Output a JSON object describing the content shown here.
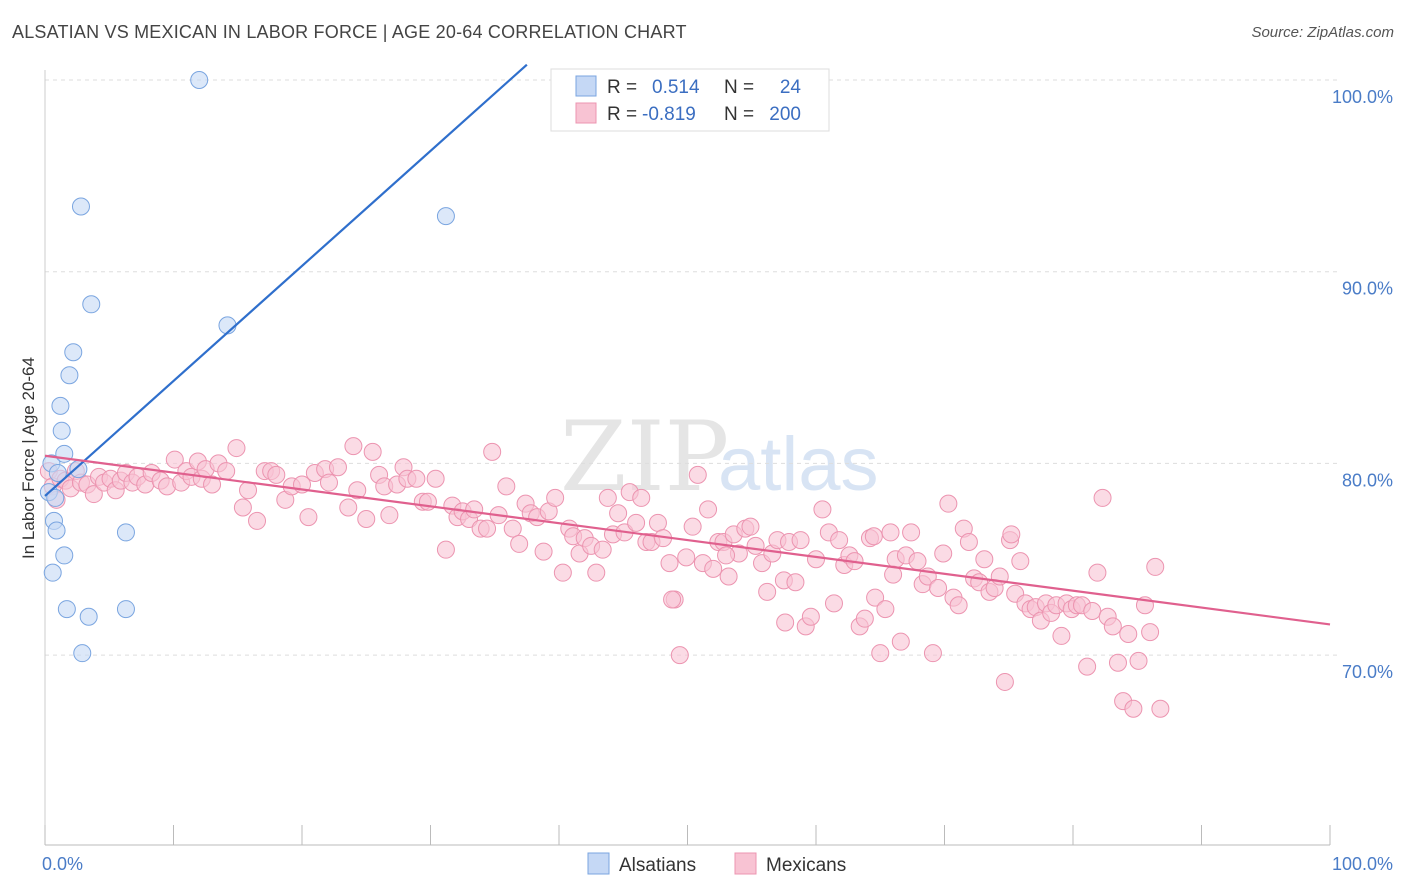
{
  "title": "ALSATIAN VS MEXICAN IN LABOR FORCE | AGE 20-64 CORRELATION CHART",
  "source": "Source: ZipAtlas.com",
  "watermark": {
    "zip": "ZIP",
    "atlas": "atlas"
  },
  "colors": {
    "blue_fill": "#c5d8f5",
    "blue_stroke": "#7aa5e0",
    "blue_line": "#2f6fcc",
    "pink_fill": "#f8c3d3",
    "pink_stroke": "#ec94b0",
    "pink_line": "#e0608e",
    "tick_text": "#4a7cc7",
    "grid": "#dddddd"
  },
  "legend": {
    "rows": [
      {
        "r_label": "R =",
        "r_value": "0.514",
        "n_label": "N =",
        "n_value": "24"
      },
      {
        "r_label": "R =",
        "r_value": "-0.819",
        "n_label": "N =",
        "n_value": "200"
      }
    ]
  },
  "bottom_legend": [
    "Alsatians",
    "Mexicans"
  ],
  "chart_data": {
    "type": "scatter",
    "title": "ALSATIAN VS MEXICAN IN LABOR FORCE | AGE 20-64 CORRELATION CHART",
    "xlabel": "",
    "ylabel": "In Labor Force | Age 20-64",
    "xlim": [
      0,
      100
    ],
    "ylim": [
      60,
      102
    ],
    "x_tick_labels": [
      "0.0%",
      "100.0%"
    ],
    "y_ticks": [
      70,
      80,
      90,
      100
    ],
    "y_tick_labels": [
      "70.0%",
      "80.0%",
      "90.0%",
      "100.0%"
    ],
    "grid": true,
    "legend_position": "top-center",
    "series": [
      {
        "name": "Alsatians",
        "points": [
          [
            0.3,
            78.5
          ],
          [
            0.5,
            80.0
          ],
          [
            0.6,
            74.3
          ],
          [
            0.7,
            77.0
          ],
          [
            0.8,
            78.2
          ],
          [
            0.9,
            76.5
          ],
          [
            1.2,
            83.0
          ],
          [
            1.3,
            81.7
          ],
          [
            1.5,
            75.2
          ],
          [
            1.7,
            72.4
          ],
          [
            1.9,
            84.6
          ],
          [
            2.2,
            85.8
          ],
          [
            1.5,
            80.5
          ],
          [
            2.6,
            79.7
          ],
          [
            2.9,
            70.1
          ],
          [
            2.8,
            93.4
          ],
          [
            3.4,
            72.0
          ],
          [
            3.6,
            88.3
          ],
          [
            6.3,
            76.4
          ],
          [
            6.3,
            72.4
          ],
          [
            12.0,
            100.0
          ],
          [
            14.2,
            87.2
          ],
          [
            31.2,
            92.9
          ],
          [
            1.0,
            79.5
          ]
        ],
        "trend": {
          "x": [
            0,
            37.5
          ],
          "y": [
            78.3,
            100.8
          ]
        }
      },
      {
        "name": "Mexicans",
        "points": [
          [
            0.3,
            79.6
          ],
          [
            0.6,
            78.8
          ],
          [
            0.9,
            78.1
          ],
          [
            1.2,
            79.2
          ],
          [
            1.6,
            79.1
          ],
          [
            2.0,
            78.7
          ],
          [
            2.4,
            79.6
          ],
          [
            2.8,
            79.0
          ],
          [
            3.3,
            78.9
          ],
          [
            3.8,
            78.4
          ],
          [
            4.2,
            79.3
          ],
          [
            4.6,
            79.0
          ],
          [
            5.1,
            79.2
          ],
          [
            5.5,
            78.6
          ],
          [
            5.9,
            79.1
          ],
          [
            6.3,
            79.5
          ],
          [
            6.8,
            79.0
          ],
          [
            7.2,
            79.3
          ],
          [
            7.8,
            78.9
          ],
          [
            8.3,
            79.5
          ],
          [
            9.0,
            79.1
          ],
          [
            9.5,
            78.8
          ],
          [
            10.1,
            80.2
          ],
          [
            10.6,
            79.0
          ],
          [
            11.0,
            79.6
          ],
          [
            11.4,
            79.3
          ],
          [
            11.9,
            80.1
          ],
          [
            12.2,
            79.2
          ],
          [
            12.5,
            79.7
          ],
          [
            13.0,
            78.9
          ],
          [
            13.5,
            80.0
          ],
          [
            14.1,
            79.6
          ],
          [
            14.9,
            80.8
          ],
          [
            15.4,
            77.7
          ],
          [
            15.8,
            78.6
          ],
          [
            16.5,
            77.0
          ],
          [
            17.1,
            79.6
          ],
          [
            17.6,
            79.6
          ],
          [
            18.0,
            79.4
          ],
          [
            18.7,
            78.1
          ],
          [
            19.2,
            78.8
          ],
          [
            20.0,
            78.9
          ],
          [
            20.5,
            77.2
          ],
          [
            21.0,
            79.5
          ],
          [
            21.8,
            79.7
          ],
          [
            22.1,
            79.0
          ],
          [
            22.8,
            79.8
          ],
          [
            23.6,
            77.7
          ],
          [
            24.0,
            80.9
          ],
          [
            24.3,
            78.6
          ],
          [
            25.0,
            77.1
          ],
          [
            25.5,
            80.6
          ],
          [
            26.0,
            79.4
          ],
          [
            26.4,
            78.8
          ],
          [
            26.8,
            77.3
          ],
          [
            27.4,
            78.9
          ],
          [
            27.9,
            79.8
          ],
          [
            28.2,
            79.2
          ],
          [
            28.9,
            79.2
          ],
          [
            29.4,
            78.0
          ],
          [
            29.8,
            78.0
          ],
          [
            30.4,
            79.2
          ],
          [
            31.2,
            75.5
          ],
          [
            31.7,
            77.8
          ],
          [
            32.1,
            77.2
          ],
          [
            32.5,
            77.5
          ],
          [
            33.0,
            77.1
          ],
          [
            33.4,
            77.6
          ],
          [
            33.9,
            76.6
          ],
          [
            34.4,
            76.6
          ],
          [
            34.8,
            80.6
          ],
          [
            35.3,
            77.3
          ],
          [
            35.9,
            78.8
          ],
          [
            36.4,
            76.6
          ],
          [
            36.9,
            75.8
          ],
          [
            37.4,
            77.9
          ],
          [
            37.8,
            77.4
          ],
          [
            38.3,
            77.2
          ],
          [
            38.8,
            75.4
          ],
          [
            39.2,
            77.5
          ],
          [
            39.7,
            78.2
          ],
          [
            40.3,
            74.3
          ],
          [
            40.8,
            76.6
          ],
          [
            41.1,
            76.2
          ],
          [
            41.6,
            75.3
          ],
          [
            42.0,
            76.1
          ],
          [
            42.5,
            75.7
          ],
          [
            42.9,
            74.3
          ],
          [
            43.4,
            75.5
          ],
          [
            43.8,
            78.2
          ],
          [
            44.2,
            76.3
          ],
          [
            44.6,
            77.4
          ],
          [
            45.1,
            76.4
          ],
          [
            45.5,
            78.5
          ],
          [
            46.0,
            76.9
          ],
          [
            46.4,
            78.2
          ],
          [
            46.8,
            75.9
          ],
          [
            47.2,
            75.9
          ],
          [
            47.7,
            76.9
          ],
          [
            48.1,
            76.1
          ],
          [
            48.6,
            74.8
          ],
          [
            49.0,
            72.9
          ],
          [
            49.4,
            70.0
          ],
          [
            49.9,
            75.1
          ],
          [
            50.4,
            76.7
          ],
          [
            50.8,
            79.4
          ],
          [
            51.2,
            74.8
          ],
          [
            51.6,
            77.6
          ],
          [
            52.0,
            74.5
          ],
          [
            52.4,
            75.9
          ],
          [
            52.8,
            75.9
          ],
          [
            53.2,
            74.1
          ],
          [
            53.6,
            76.3
          ],
          [
            54.0,
            75.3
          ],
          [
            54.5,
            76.6
          ],
          [
            54.9,
            76.7
          ],
          [
            55.3,
            75.7
          ],
          [
            55.8,
            74.8
          ],
          [
            56.2,
            73.3
          ],
          [
            56.6,
            75.3
          ],
          [
            57.0,
            76.0
          ],
          [
            57.5,
            73.9
          ],
          [
            57.9,
            75.9
          ],
          [
            58.4,
            73.8
          ],
          [
            58.8,
            76.0
          ],
          [
            59.2,
            71.5
          ],
          [
            59.6,
            72.0
          ],
          [
            60.0,
            75.0
          ],
          [
            60.5,
            77.6
          ],
          [
            61.0,
            76.4
          ],
          [
            61.4,
            72.7
          ],
          [
            61.8,
            76.0
          ],
          [
            62.2,
            74.7
          ],
          [
            62.6,
            75.2
          ],
          [
            63.0,
            74.9
          ],
          [
            63.4,
            71.5
          ],
          [
            63.8,
            71.9
          ],
          [
            64.2,
            76.1
          ],
          [
            64.6,
            73.0
          ],
          [
            65.0,
            70.1
          ],
          [
            65.4,
            72.4
          ],
          [
            65.8,
            76.4
          ],
          [
            66.2,
            75.0
          ],
          [
            66.6,
            70.7
          ],
          [
            67.0,
            75.2
          ],
          [
            67.4,
            76.4
          ],
          [
            67.9,
            74.9
          ],
          [
            68.3,
            73.7
          ],
          [
            68.7,
            74.1
          ],
          [
            69.1,
            70.1
          ],
          [
            69.5,
            73.5
          ],
          [
            69.9,
            75.3
          ],
          [
            70.3,
            77.9
          ],
          [
            70.7,
            73.0
          ],
          [
            71.1,
            72.6
          ],
          [
            71.5,
            76.6
          ],
          [
            71.9,
            75.9
          ],
          [
            72.3,
            74.0
          ],
          [
            72.7,
            73.8
          ],
          [
            73.1,
            75.0
          ],
          [
            73.5,
            73.3
          ],
          [
            73.9,
            73.5
          ],
          [
            74.3,
            74.1
          ],
          [
            74.7,
            68.6
          ],
          [
            75.1,
            76.0
          ],
          [
            75.5,
            73.2
          ],
          [
            75.9,
            74.9
          ],
          [
            76.3,
            72.7
          ],
          [
            76.7,
            72.4
          ],
          [
            77.1,
            72.5
          ],
          [
            77.5,
            71.8
          ],
          [
            77.9,
            72.7
          ],
          [
            78.3,
            72.2
          ],
          [
            78.7,
            72.6
          ],
          [
            79.1,
            71.0
          ],
          [
            79.5,
            72.7
          ],
          [
            79.9,
            72.4
          ],
          [
            80.3,
            72.6
          ],
          [
            80.7,
            72.6
          ],
          [
            81.1,
            69.4
          ],
          [
            81.5,
            72.3
          ],
          [
            81.9,
            74.3
          ],
          [
            82.3,
            78.2
          ],
          [
            82.7,
            72.0
          ],
          [
            83.1,
            71.5
          ],
          [
            83.5,
            69.6
          ],
          [
            83.9,
            67.6
          ],
          [
            84.3,
            71.1
          ],
          [
            84.7,
            67.2
          ],
          [
            85.1,
            69.7
          ],
          [
            85.6,
            72.6
          ],
          [
            86.0,
            71.2
          ],
          [
            86.4,
            74.6
          ],
          [
            86.8,
            67.2
          ],
          [
            75.2,
            76.3
          ],
          [
            66.0,
            74.2
          ],
          [
            48.8,
            72.9
          ],
          [
            64.5,
            76.2
          ],
          [
            57.6,
            71.7
          ],
          [
            53.0,
            75.2
          ]
        ],
        "trend": {
          "x": [
            0,
            100
          ],
          "y": [
            80.4,
            71.6
          ]
        }
      }
    ]
  }
}
